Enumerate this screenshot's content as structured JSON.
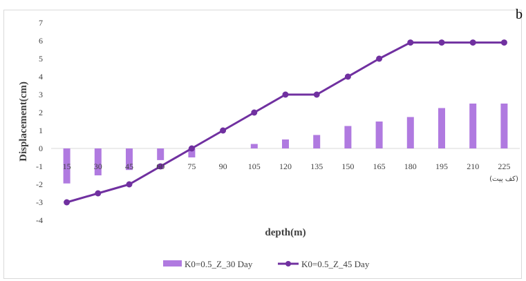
{
  "chart_data": {
    "type": "bar",
    "panel_label": "b",
    "categories": [
      "15",
      "30",
      "45",
      "60",
      "75",
      "90",
      "105",
      "120",
      "135",
      "150",
      "165",
      "180",
      "195",
      "210",
      "225"
    ],
    "last_category_note": "(کف پیت)",
    "series": [
      {
        "name": "K0=0.5_Z_30 Day",
        "type": "bar",
        "color": "#b07ae0",
        "values": [
          -1.95,
          -1.5,
          -1.2,
          -0.65,
          -0.5,
          0,
          0.25,
          0.5,
          0.75,
          1.25,
          1.5,
          1.75,
          2.25,
          2.5,
          2.5
        ]
      },
      {
        "name": "K0=0.5_Z_45 Day",
        "type": "line",
        "color": "#7030a0",
        "values": [
          -3,
          -2.5,
          -2,
          -1,
          0,
          1,
          2,
          3,
          3,
          4,
          5,
          5.9,
          5.9,
          5.9,
          5.9
        ]
      }
    ],
    "xlabel": "depth(m)",
    "ylabel": "Displacement(cm)",
    "ylim": [
      -4,
      7
    ],
    "yticks": [
      7,
      6,
      5,
      4,
      3,
      2,
      1,
      0,
      -1,
      -2,
      -3,
      -4
    ],
    "grid": false,
    "legend": "bottom"
  }
}
